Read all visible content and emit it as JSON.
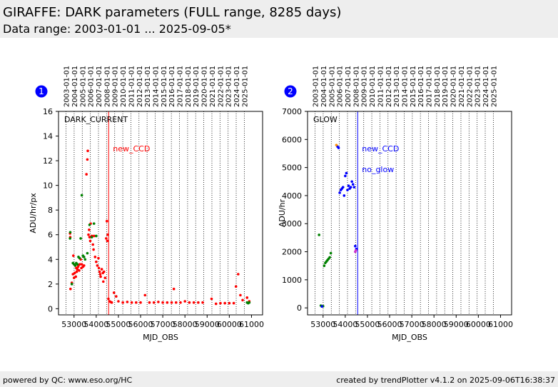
{
  "header": {
    "title": "GIRAFFE: DARK parameters (FULL range, 8285 days)",
    "subtitle": "Data range: 2003-01-01 ... 2025-09-05*"
  },
  "footer": {
    "left": "powered by QC: www.eso.org/HC",
    "right": "created by trendPlotter v4.1.2 on 2025-09-06T16:38:37"
  },
  "colors": {
    "red": "#ff0000",
    "green": "#008000",
    "blue": "#0000ff",
    "orange": "#ff8c00",
    "darkgreen": "#1a7a1a",
    "badge": "#0000ff"
  },
  "chart_data": [
    {
      "type": "scatter",
      "badge": "1",
      "title": "DARK_CURRENT",
      "xlabel": "MJD_OBS",
      "ylabel": "ADU/hr/px",
      "xlim": [
        52300,
        61500
      ],
      "ylim": [
        -0.5,
        16
      ],
      "xticks": [
        53000,
        54000,
        55000,
        56000,
        57000,
        58000,
        59000,
        60000,
        61000
      ],
      "yticks": [
        0,
        2,
        4,
        6,
        8,
        10,
        12,
        14,
        16
      ],
      "top_date_labels": [
        "2003-01-01",
        "2004-01-01",
        "2005-01-01",
        "2006-01-01",
        "2007-01-01",
        "2008-01-01",
        "2009-01-01",
        "2010-01-01",
        "2011-01-01",
        "2012-01-01",
        "2013-01-01",
        "2014-01-01",
        "2015-01-01",
        "2016-01-01",
        "2017-01-01",
        "2018-01-01",
        "2019-01-01",
        "2020-01-01",
        "2021-01-01",
        "2022-01-01",
        "2023-01-01",
        "2024-01-01",
        "2025-01-01"
      ],
      "year_mjd": [
        52640,
        53005,
        53371,
        53736,
        54101,
        54466,
        54832,
        55197,
        55562,
        55927,
        56293,
        56658,
        57023,
        57388,
        57754,
        58119,
        58484,
        58849,
        59215,
        59580,
        59945,
        60310,
        60676
      ],
      "event": {
        "mjd": 54560,
        "label": "new_CCD",
        "color": "#ff0000"
      },
      "groups": [
        {
          "color": "#ff0000",
          "x": [
            52820,
            52830,
            52840,
            52900,
            52950,
            52970,
            53000,
            53030,
            53050,
            53080,
            53100,
            53120,
            53150,
            53180,
            53200,
            53230,
            53260,
            53300,
            53330,
            53350,
            53400,
            53450,
            53560,
            53600,
            53620,
            53650,
            53680,
            53700,
            53730,
            53750,
            53800,
            53850,
            53880,
            53900,
            53950,
            54000,
            54050,
            54100,
            54120,
            54150,
            54180,
            54200,
            54250,
            54300,
            54320,
            54350,
            54400,
            54450,
            54480,
            54500,
            54520,
            54550,
            54600,
            54650,
            54700,
            54800,
            54900,
            55000,
            55200,
            55400,
            55600,
            55800,
            56000,
            56200,
            56400,
            56600,
            56800,
            57000,
            57200,
            57400,
            57500,
            57600,
            57800,
            58000,
            58200,
            58400,
            58600,
            58800,
            59200,
            59400,
            59600,
            59800,
            60000,
            60200,
            60300,
            60400,
            60500,
            60600,
            60800,
            60900
          ],
          "y": [
            6.1,
            5.8,
            1.6,
            2.1,
            2.8,
            4.3,
            2.5,
            2.9,
            3.5,
            2.6,
            3.3,
            3.0,
            3.2,
            3.4,
            3.5,
            3.1,
            3.6,
            4.0,
            3.3,
            3.6,
            3.4,
            3.5,
            10.9,
            12.1,
            12.8,
            6.0,
            6.4,
            5.8,
            5.5,
            6.9,
            5.9,
            5.2,
            4.8,
            5.9,
            4.2,
            3.8,
            3.5,
            4.1,
            3.3,
            3.0,
            2.8,
            2.6,
            3.2,
            2.9,
            2.2,
            3.0,
            2.5,
            5.7,
            7.1,
            5.5,
            6.0,
            0.8,
            0.6,
            0.55,
            0.5,
            1.3,
            1.0,
            0.6,
            0.5,
            0.55,
            0.5,
            0.5,
            0.5,
            1.1,
            0.5,
            0.5,
            0.55,
            0.5,
            0.5,
            0.5,
            1.6,
            0.5,
            0.5,
            0.6,
            0.5,
            0.5,
            0.5,
            0.5,
            0.8,
            0.4,
            0.45,
            0.45,
            0.45,
            0.45,
            1.8,
            2.8,
            1.1,
            0.7,
            0.9,
            0.6
          ]
        },
        {
          "color": "#008000",
          "x": [
            52820,
            52830,
            52900,
            52950,
            53000,
            53050,
            53100,
            53150,
            53200,
            53250,
            53300,
            53350,
            53400,
            53450,
            53500,
            53600,
            53700,
            53800,
            53900,
            54000,
            60800,
            60850,
            60900
          ],
          "y": [
            5.7,
            6.2,
            2.0,
            3.7,
            3.6,
            3.5,
            3.7,
            3.6,
            4.2,
            4.1,
            5.7,
            9.2,
            4.3,
            4.2,
            4.0,
            4.5,
            6.8,
            5.8,
            6.9,
            5.9,
            0.5,
            0.45,
            0.5
          ]
        }
      ]
    },
    {
      "type": "scatter",
      "badge": "2",
      "title": "GLOW",
      "xlabel": "MJD_OBS",
      "ylabel": "ADU/hr",
      "xlim": [
        52300,
        61500
      ],
      "ylim": [
        -250,
        7000
      ],
      "xticks": [
        53000,
        54000,
        55000,
        56000,
        57000,
        58000,
        59000,
        60000,
        61000
      ],
      "yticks": [
        0,
        1000,
        2000,
        3000,
        4000,
        5000,
        6000,
        7000
      ],
      "top_date_labels": [
        "2003-01-01",
        "2004-01-01",
        "2005-01-01",
        "2006-01-01",
        "2007-01-01",
        "2008-01-01",
        "2009-01-01",
        "2010-01-01",
        "2011-01-01",
        "2012-01-01",
        "2013-01-01",
        "2014-01-01",
        "2015-01-01",
        "2016-01-01",
        "2017-01-01",
        "2018-01-01",
        "2019-01-01",
        "2020-01-01",
        "2021-01-01",
        "2022-01-01",
        "2023-01-01",
        "2024-01-01",
        "2025-01-01"
      ],
      "year_mjd": [
        52640,
        53005,
        53371,
        53736,
        54101,
        54466,
        54832,
        55197,
        55562,
        55927,
        56293,
        56658,
        57023,
        57388,
        57754,
        58119,
        58484,
        58849,
        59215,
        59580,
        59945,
        60310,
        60676
      ],
      "event": {
        "mjd": 54560,
        "label": "new_CCD",
        "label2": "no_glow",
        "color": "#0000ff"
      },
      "groups": [
        {
          "color": "#008000",
          "x": [
            52820,
            52900,
            52950,
            53000,
            53050,
            53100,
            53150,
            53200,
            53250,
            53300,
            53350
          ],
          "y": [
            2600,
            80,
            50,
            60,
            1500,
            1600,
            1650,
            1700,
            1750,
            1800,
            1950
          ]
        },
        {
          "color": "#0000ff",
          "x": [
            52950,
            53650,
            53700,
            53750,
            53800,
            53850,
            53900,
            53950,
            54000,
            54050,
            54100,
            54150,
            54200,
            54250,
            54300,
            54350,
            54400,
            54450,
            54500
          ],
          "y": [
            50,
            5750,
            5700,
            4100,
            4200,
            4250,
            4300,
            4000,
            4700,
            4800,
            4200,
            4350,
            4250,
            4300,
            4500,
            4400,
            4300,
            2200,
            2100
          ]
        },
        {
          "color": "#ff8c00",
          "x": [
            53600
          ],
          "y": [
            5800
          ]
        },
        {
          "color": "#cc33cc",
          "x": [
            54450,
            54480
          ],
          "y": [
            2000,
            2050
          ]
        }
      ]
    }
  ]
}
